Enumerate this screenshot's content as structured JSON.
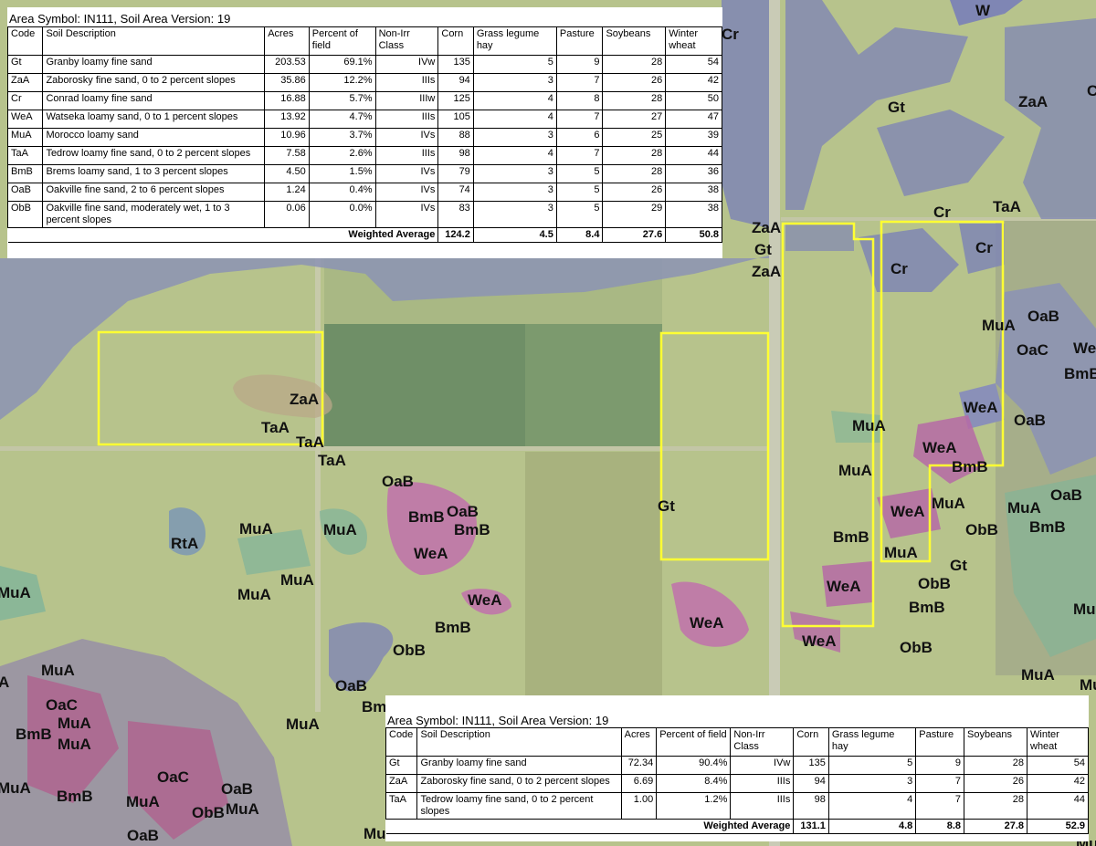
{
  "map_labels": {
    "w": "W",
    "cr_tr": "Cr",
    "gt_ne": "Gt",
    "zaa_ne": "ZaA",
    "c_edge": "C",
    "cr_1": "Cr",
    "taa_1": "TaA",
    "zaa_mid": "ZaA",
    "gt_mid": "Gt",
    "zaa_mid2": "ZaA",
    "cr_2": "Cr",
    "cr_3": "Cr",
    "mua_1": "MuA",
    "oab_1": "OaB",
    "oac_1": "OaC",
    "we_edge": "We",
    "bmb_edge": "BmB",
    "zaa_w": "ZaA",
    "taa_w1": "TaA",
    "taa_w2": "TaA",
    "taa_w3": "TaA",
    "wea_1": "WeA",
    "oab_2": "OaB",
    "mua_2": "MuA",
    "wea_2": "WeA",
    "mua_3": "MuA",
    "bmb_1": "BmB",
    "wea_3": "WeA",
    "mua_4": "MuA",
    "oab_3": "OaB",
    "mua_5": "MuA",
    "bmb_2": "BmB",
    "obb_1": "ObB",
    "oab_4": "OaB",
    "bmb_3": "BmB",
    "oab_5": "OaB",
    "bmb_4": "BmB",
    "wea_4": "WeA",
    "gt_center": "Gt",
    "mua_6": "MuA",
    "mua_7": "MuA",
    "rta": "RtA",
    "mua_8": "MuA",
    "mua_9": "MuA",
    "mua_10": "MuA",
    "mua_11": "MuA",
    "wea_5": "WeA",
    "bmb_5": "BmB",
    "obb_2": "ObB",
    "wea_6": "WeA",
    "bmb_6": "BmB",
    "mua_12": "MuA",
    "gt_2": "Gt",
    "obb_3": "ObB",
    "wea_7": "WeA",
    "bmb_7": "BmB",
    "wea_8": "WeA",
    "obb_4": "ObB",
    "mua_13": "MuA",
    "mua_edge": "MuA",
    "oab_6": "OaB",
    "bm_cut": "Bm",
    "mua_14": "MuA",
    "oac_2": "OaC",
    "mua_15": "MuA",
    "bmb_8": "BmB",
    "mua_16": "MuA",
    "mua_17": "MuA",
    "bmb_9": "BmB",
    "mua_18": "MuA",
    "oac_3": "OaC",
    "oab_7": "OaB",
    "obb_5": "ObB",
    "mua_19": "MuA",
    "oab_8": "OaB",
    "mu_cut": "Mu",
    "a_edge": "A",
    "mua_20": "MuA",
    "mua_21": "MuA"
  },
  "colors": {
    "field_boundary": "#ffff33",
    "unit_gt": "#b7c58c",
    "unit_cr": "#7f86b4",
    "unit_we": "#b66aa6",
    "unit_mu": "#7fb49a",
    "unit_oa": "#8a90b8"
  },
  "top_table": {
    "title": "Area Symbol: IN111, Soil Area Version: 19",
    "headers": [
      "Code",
      "Soil Description",
      "Acres",
      "Percent of field",
      "Non-Irr Class",
      "Corn",
      "Grass legume hay",
      "Pasture",
      "Soybeans",
      "Winter wheat"
    ],
    "rows": [
      {
        "code": "Gt",
        "desc": "Granby loamy fine sand",
        "acres": "203.53",
        "pct": "69.1%",
        "cls": "IVw",
        "corn": "135",
        "hay": "5",
        "pasture": "9",
        "soy": "28",
        "wheat": "54"
      },
      {
        "code": "ZaA",
        "desc": "Zaborosky fine sand, 0 to 2 percent slopes",
        "acres": "35.86",
        "pct": "12.2%",
        "cls": "IIIs",
        "corn": "94",
        "hay": "3",
        "pasture": "7",
        "soy": "26",
        "wheat": "42"
      },
      {
        "code": "Cr",
        "desc": "Conrad loamy fine sand",
        "acres": "16.88",
        "pct": "5.7%",
        "cls": "IIIw",
        "corn": "125",
        "hay": "4",
        "pasture": "8",
        "soy": "28",
        "wheat": "50"
      },
      {
        "code": "WeA",
        "desc": "Watseka loamy sand, 0 to 1 percent slopes",
        "acres": "13.92",
        "pct": "4.7%",
        "cls": "IIIs",
        "corn": "105",
        "hay": "4",
        "pasture": "7",
        "soy": "27",
        "wheat": "47"
      },
      {
        "code": "MuA",
        "desc": "Morocco loamy sand",
        "acres": "10.96",
        "pct": "3.7%",
        "cls": "IVs",
        "corn": "88",
        "hay": "3",
        "pasture": "6",
        "soy": "25",
        "wheat": "39"
      },
      {
        "code": "TaA",
        "desc": "Tedrow loamy fine sand, 0 to 2 percent slopes",
        "acres": "7.58",
        "pct": "2.6%",
        "cls": "IIIs",
        "corn": "98",
        "hay": "4",
        "pasture": "7",
        "soy": "28",
        "wheat": "44"
      },
      {
        "code": "BmB",
        "desc": "Brems loamy sand, 1 to 3 percent slopes",
        "acres": "4.50",
        "pct": "1.5%",
        "cls": "IVs",
        "corn": "79",
        "hay": "3",
        "pasture": "5",
        "soy": "28",
        "wheat": "36"
      },
      {
        "code": "OaB",
        "desc": "Oakville fine sand, 2 to 6 percent slopes",
        "acres": "1.24",
        "pct": "0.4%",
        "cls": "IVs",
        "corn": "74",
        "hay": "3",
        "pasture": "5",
        "soy": "26",
        "wheat": "38"
      },
      {
        "code": "ObB",
        "desc": "Oakville fine sand, moderately wet, 1 to 3 percent slopes",
        "acres": "0.06",
        "pct": "0.0%",
        "cls": "IVs",
        "corn": "83",
        "hay": "3",
        "pasture": "5",
        "soy": "29",
        "wheat": "38"
      }
    ],
    "weighted": {
      "label": "Weighted Average",
      "corn": "124.2",
      "hay": "4.5",
      "pasture": "8.4",
      "soy": "27.6",
      "wheat": "50.8"
    }
  },
  "bottom_table": {
    "title": "Area Symbol: IN111, Soil Area Version: 19",
    "headers": [
      "Code",
      "Soil Description",
      "Acres",
      "Percent of field",
      "Non-Irr Class",
      "Corn",
      "Grass legume hay",
      "Pasture",
      "Soybeans",
      "Winter wheat"
    ],
    "rows": [
      {
        "code": "Gt",
        "desc": "Granby loamy fine sand",
        "acres": "72.34",
        "pct": "90.4%",
        "cls": "IVw",
        "corn": "135",
        "hay": "5",
        "pasture": "9",
        "soy": "28",
        "wheat": "54"
      },
      {
        "code": "ZaA",
        "desc": "Zaborosky fine sand, 0 to 2 percent slopes",
        "acres": "6.69",
        "pct": "8.4%",
        "cls": "IIIs",
        "corn": "94",
        "hay": "3",
        "pasture": "7",
        "soy": "26",
        "wheat": "42"
      },
      {
        "code": "TaA",
        "desc": "Tedrow loamy fine sand, 0 to 2 percent slopes",
        "acres": "1.00",
        "pct": "1.2%",
        "cls": "IIIs",
        "corn": "98",
        "hay": "4",
        "pasture": "7",
        "soy": "28",
        "wheat": "44"
      }
    ],
    "weighted": {
      "label": "Weighted Average",
      "corn": "131.1",
      "hay": "4.8",
      "pasture": "8.8",
      "soy": "27.8",
      "wheat": "52.9"
    }
  }
}
